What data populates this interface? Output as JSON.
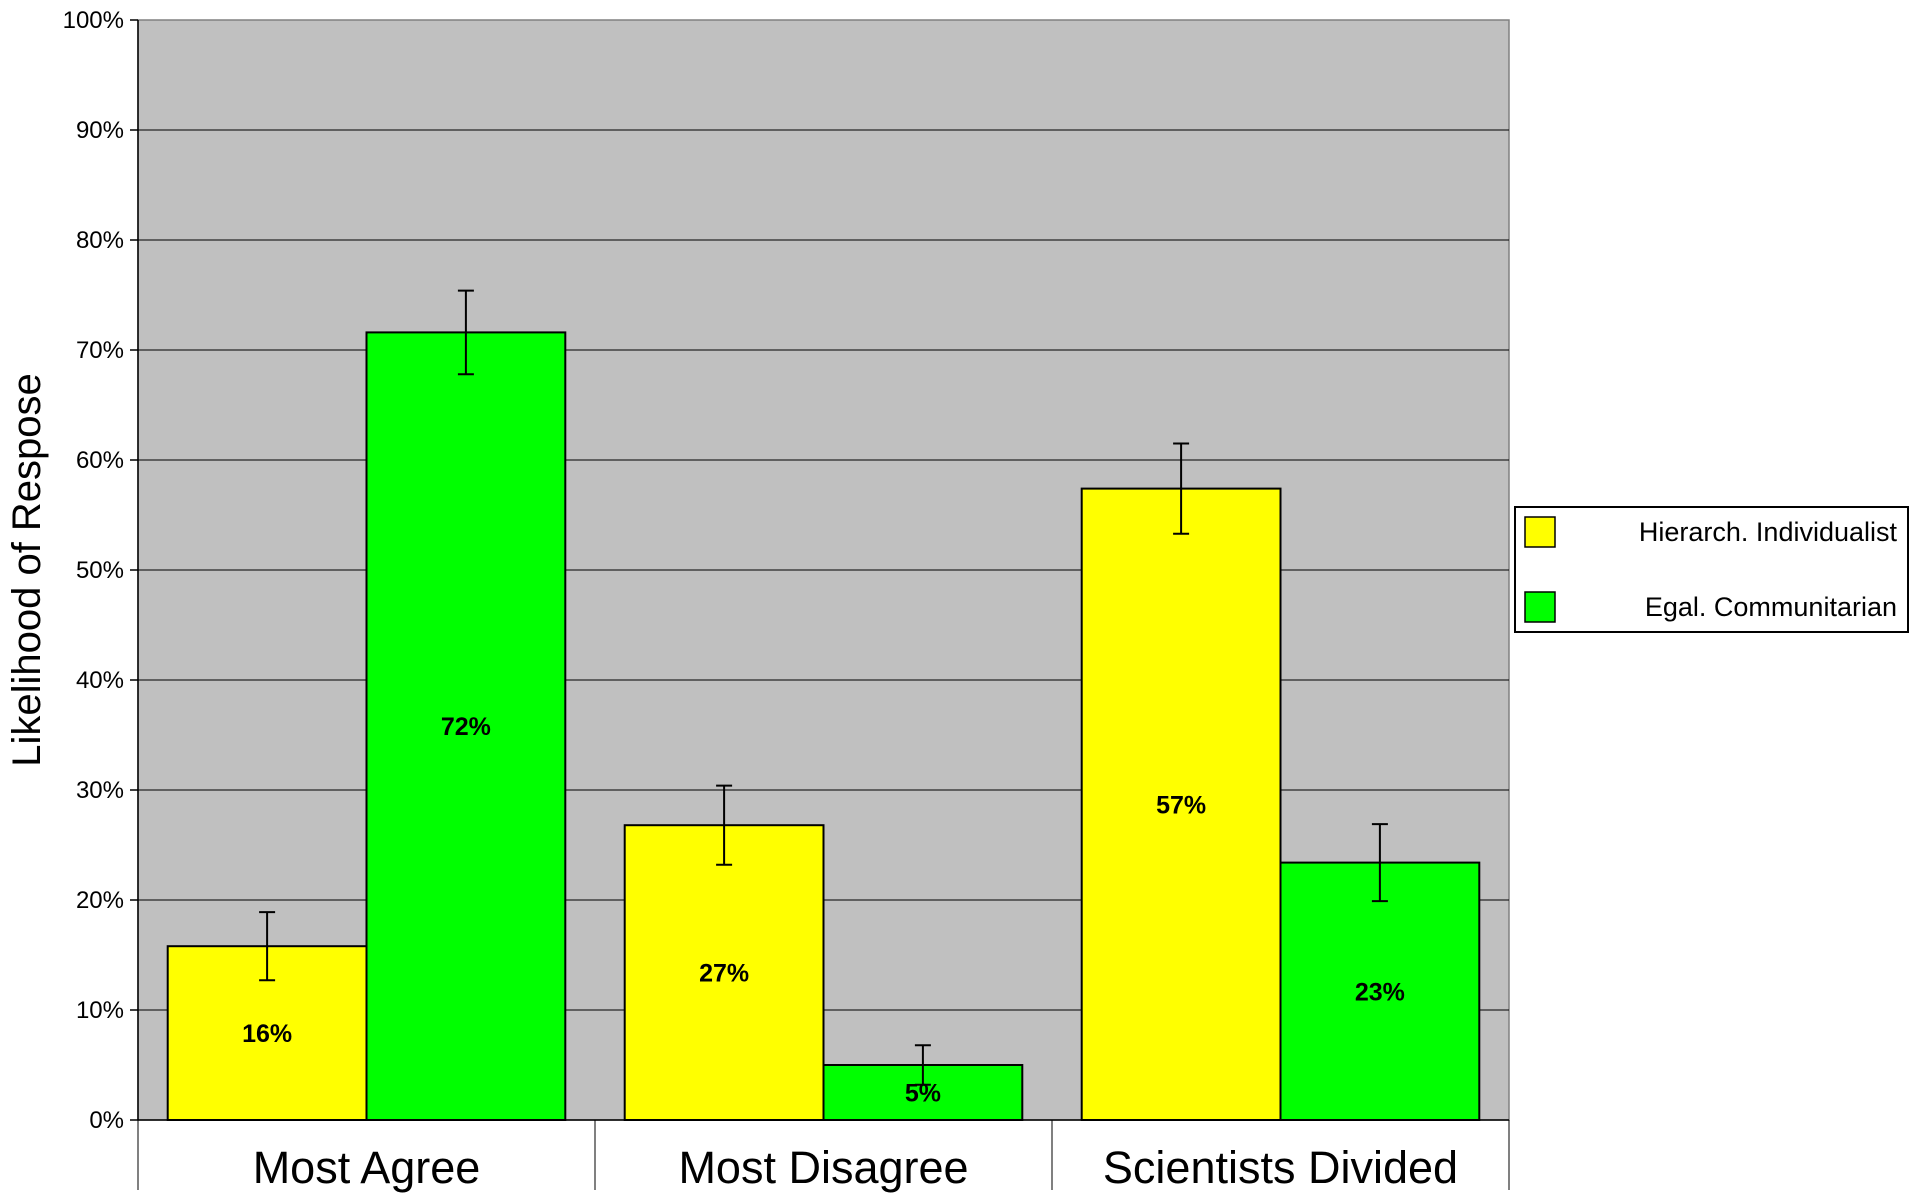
{
  "chart_data": {
    "type": "bar",
    "title": "",
    "xlabel": "",
    "ylabel": "Likelihood of Respose",
    "ylim": [
      0,
      100
    ],
    "yticks": [
      "0%",
      "10%",
      "20%",
      "30%",
      "40%",
      "50%",
      "60%",
      "70%",
      "80%",
      "90%",
      "100%"
    ],
    "categories": [
      "Most Agree",
      "Most Disagree",
      "Scientists Divided"
    ],
    "series": [
      {
        "name": "Hierarch. Individualist",
        "color": "#ffff00",
        "values": [
          15.8,
          26.8,
          57.4
        ],
        "labels": [
          "16%",
          "27%",
          "57%"
        ],
        "error": [
          3.1,
          3.6,
          4.1
        ]
      },
      {
        "name": "Egal. Communitarian",
        "color": "#00ff00",
        "values": [
          71.6,
          5.0,
          23.4
        ],
        "labels": [
          "72%",
          "5%",
          "23%"
        ],
        "error": [
          3.8,
          1.8,
          3.5
        ]
      }
    ],
    "grid": true,
    "plot_background": "#c0c0c0",
    "legend_position": "right"
  }
}
